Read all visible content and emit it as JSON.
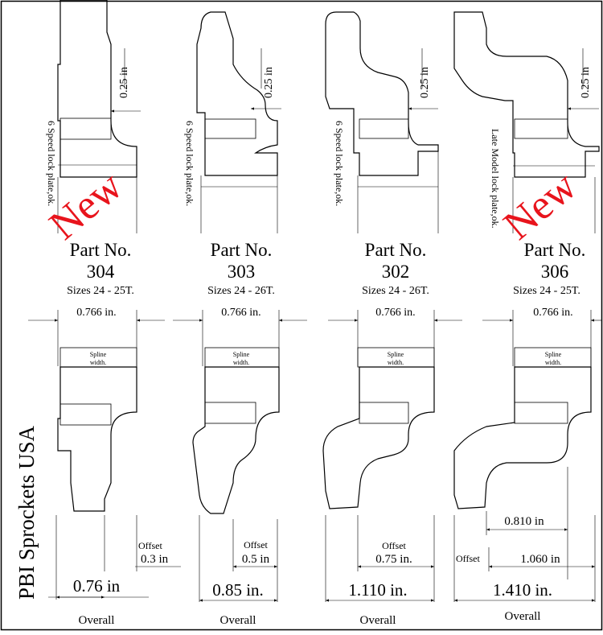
{
  "brand": "PBI Sprockets USA",
  "new_label": "New",
  "parts": [
    {
      "id": "304",
      "part_label": "Part No.",
      "part_number": "304",
      "sizes": "Sizes 24 - 25T.",
      "lock_plate": "6 Speed lock plate,ok.",
      "top_dim": "0.25 in",
      "spline_dim": "0.766 in.",
      "spline_label": "Spline width.",
      "offset_label": "Offset",
      "offset_value": "0.3 in",
      "overall_value": "0.76 in",
      "overall_label": "Overall",
      "is_new": true
    },
    {
      "id": "303",
      "part_label": "Part No.",
      "part_number": "303",
      "sizes": "Sizes 24 - 26T.",
      "lock_plate": "6 Speed lock plate,ok.",
      "top_dim": "0.25 in",
      "spline_dim": "0.766 in.",
      "spline_label": "Spline width.",
      "offset_label": "Offset",
      "offset_value": "0.5 in",
      "overall_value": "0.85 in.",
      "overall_label": "Overall",
      "is_new": false
    },
    {
      "id": "302",
      "part_label": "Part No.",
      "part_number": "302",
      "sizes": "Sizes 24 - 26T.",
      "lock_plate": "6 Speed lock plate,ok.",
      "top_dim": "0.25 in",
      "spline_dim": "0.766 in.",
      "spline_label": "Spline width.",
      "offset_label": "Offset",
      "offset_value": "0.75 in.",
      "overall_value": "1.110 in.",
      "overall_label": "Overall",
      "is_new": false
    },
    {
      "id": "306",
      "part_label": "Part No.",
      "part_number": "306",
      "sizes": "Sizes 24 - 25T.",
      "lock_plate": "Late Model lock plate,ok.",
      "top_dim": "0.25 in",
      "spline_dim": "0.766 in.",
      "spline_label": "Spline width.",
      "extra_dim": "0.810 in",
      "offset_label": "Offset",
      "offset_value": "1.060 in",
      "overall_value": "1.410 in.",
      "overall_label": "Overall",
      "is_new": true
    }
  ]
}
